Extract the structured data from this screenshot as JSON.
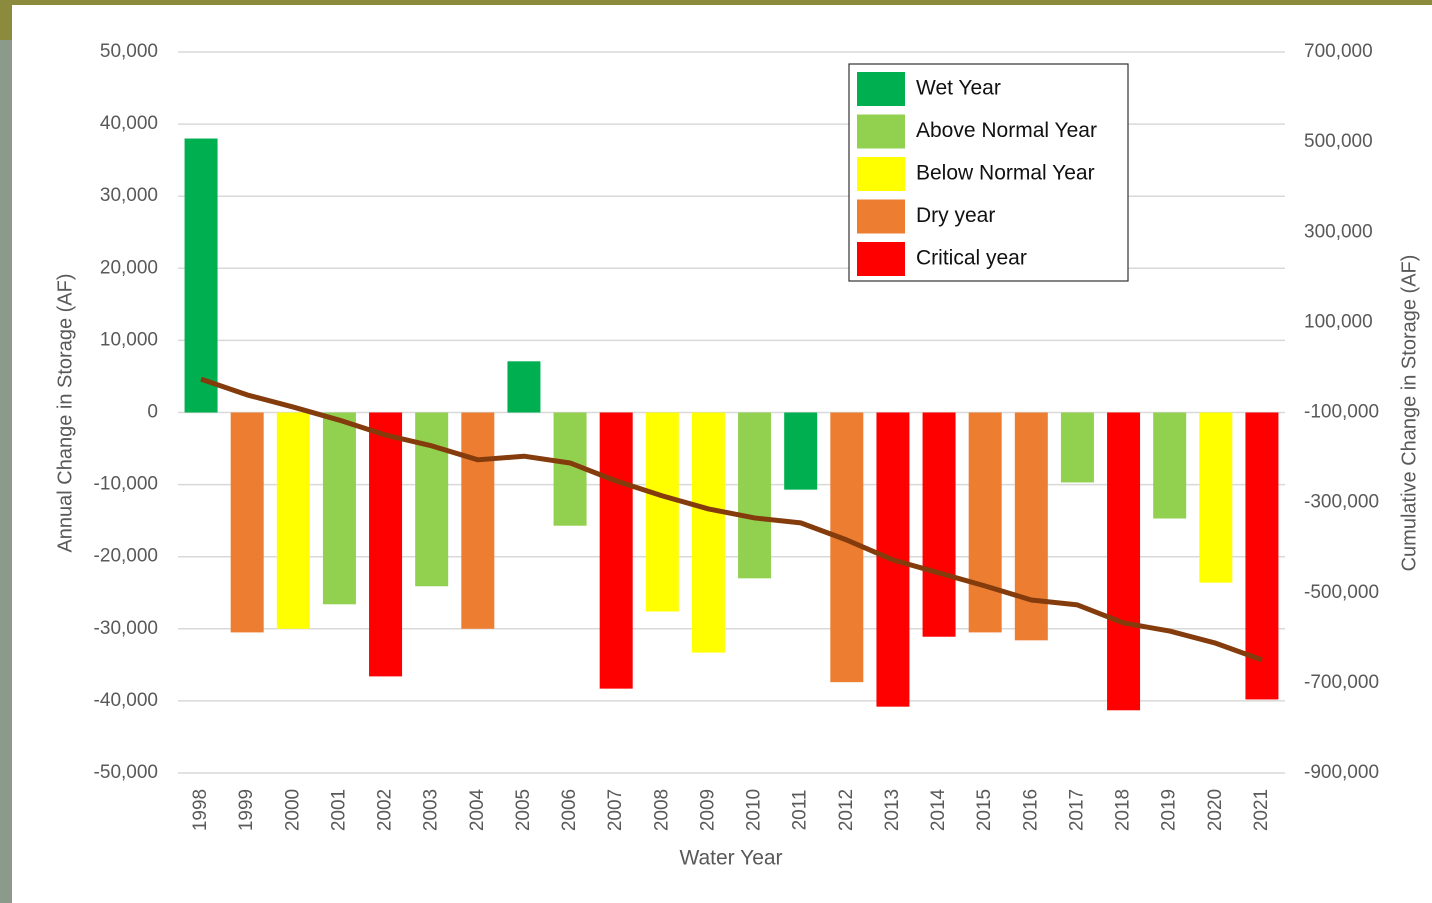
{
  "chart_data": {
    "type": "bar",
    "x_label": "Water Year",
    "y_label": "Annual Change in Storage (AF)",
    "y2_label": "Cumulative Change in Storage (AF)",
    "categories": [
      "1998",
      "1999",
      "2000",
      "2001",
      "2002",
      "2003",
      "2004",
      "2005",
      "2006",
      "2007",
      "2008",
      "2009",
      "2010",
      "2011",
      "2012",
      "2013",
      "2014",
      "2015",
      "2016",
      "2017",
      "2018",
      "2019",
      "2020",
      "2021"
    ],
    "ylim": [
      -50000,
      50000
    ],
    "yticks": [
      {
        "value": -50000,
        "label": "-50,000"
      },
      {
        "value": -40000,
        "label": "-40,000"
      },
      {
        "value": -30000,
        "label": "-30,000"
      },
      {
        "value": -20000,
        "label": "-20,000"
      },
      {
        "value": -10000,
        "label": "-10,000"
      },
      0,
      {
        "value": 10000,
        "label": "10,000"
      },
      {
        "value": 20000,
        "label": "20,000"
      },
      {
        "value": 30000,
        "label": "30,000"
      },
      {
        "value": 40000,
        "label": "40,000"
      },
      {
        "value": 50000,
        "label": "50,000"
      }
    ],
    "y2lim": [
      -900000,
      700000
    ],
    "y2ticks": [
      {
        "value": -900000,
        "label": "-900,000"
      },
      {
        "value": -700000,
        "label": "-700,000"
      },
      {
        "value": -500000,
        "label": "-500,000"
      },
      {
        "value": -300000,
        "label": "-300,000"
      },
      {
        "value": -100000,
        "label": "-100,000"
      },
      {
        "value": 100000,
        "label": "100,000"
      },
      {
        "value": 300000,
        "label": "300,000"
      },
      {
        "value": 500000,
        "label": "500,000"
      },
      {
        "value": 700000,
        "label": "700,000"
      }
    ],
    "grid": true,
    "legend": "upper right",
    "series": [
      {
        "name": "Wet Year",
        "color": "#00b050",
        "values": [
          38000,
          null,
          null,
          null,
          null,
          null,
          null,
          7100,
          null,
          null,
          null,
          null,
          null,
          -10700,
          null,
          null,
          null,
          null,
          null,
          null,
          null,
          null,
          null,
          null
        ]
      },
      {
        "name": "Above Normal Year",
        "color": "#92d050",
        "values": [
          null,
          null,
          null,
          -26600,
          null,
          -24100,
          null,
          null,
          -15700,
          null,
          null,
          null,
          -23000,
          null,
          null,
          null,
          null,
          null,
          null,
          -9700,
          null,
          -14700,
          null,
          null
        ]
      },
      {
        "name": "Below Normal Year",
        "color": "#ffff00",
        "values": [
          null,
          null,
          -30000,
          null,
          null,
          null,
          null,
          null,
          null,
          null,
          -27600,
          -33300,
          null,
          null,
          null,
          null,
          null,
          null,
          null,
          null,
          null,
          null,
          -23600,
          null
        ]
      },
      {
        "name": "Dry year",
        "color": "#ed7d31",
        "values": [
          null,
          -30500,
          null,
          null,
          null,
          null,
          -30000,
          null,
          null,
          null,
          null,
          null,
          null,
          null,
          -37400,
          null,
          null,
          -30500,
          -31600,
          null,
          null,
          null,
          null,
          null
        ]
      },
      {
        "name": "Critical year",
        "color": "#ff0000",
        "values": [
          null,
          null,
          null,
          null,
          -36600,
          null,
          null,
          null,
          null,
          -38300,
          null,
          null,
          null,
          null,
          null,
          -40800,
          -31100,
          null,
          null,
          null,
          -41300,
          null,
          null,
          -39800
        ]
      },
      {
        "type": "line",
        "axis": "y2",
        "color": "#843c0c",
        "values": [
          -26000,
          -61000,
          -88000,
          -117000,
          -150000,
          -174000,
          -205000,
          -197000,
          -212000,
          -252000,
          -285000,
          -314000,
          -334000,
          -345000,
          -383000,
          -427000,
          -456000,
          -485000,
          -516000,
          -527000,
          -567000,
          -585000,
          -612000,
          -649000
        ]
      }
    ]
  }
}
